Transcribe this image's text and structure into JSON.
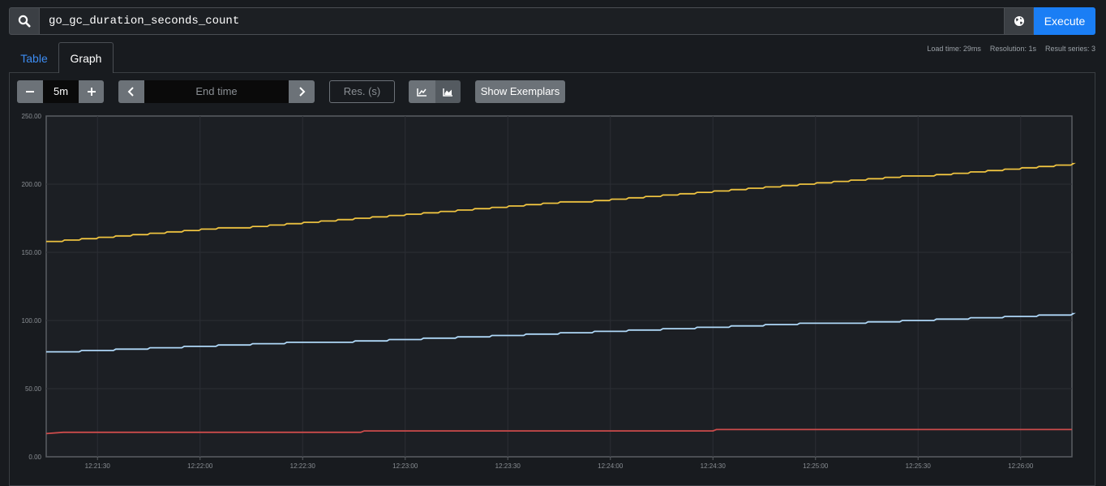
{
  "query": {
    "expression": "go_gc_duration_seconds_count",
    "execute_label": "Execute",
    "search_icon": "search-icon",
    "globe_icon": "globe-icon"
  },
  "tabs": [
    {
      "label": "Table",
      "active": false
    },
    {
      "label": "Graph",
      "active": true
    }
  ],
  "stats": {
    "load_time": "Load time: 29ms",
    "resolution": "Resolution: 1s",
    "result_series": "Result series: 3"
  },
  "controls": {
    "range_value": "5m",
    "end_time_placeholder": "End time",
    "resolution_placeholder": "Res. (s)",
    "show_exemplars_label": "Show Exemplars",
    "icons": {
      "minus": "minus-icon",
      "plus": "plus-icon",
      "prev": "chevron-left-icon",
      "next": "chevron-right-icon",
      "lines": "line-chart-icon",
      "stacked": "area-chart-icon"
    }
  },
  "colors": {
    "accent": "#1a7ef5",
    "series_1": "#edc240",
    "series_2": "#afd8f8",
    "series_3": "#cb4b4b"
  },
  "chart_data": {
    "type": "line",
    "title": "",
    "xlabel": "",
    "ylabel": "",
    "ylim": [
      0,
      250
    ],
    "y_ticks": [
      "0.00",
      "50.00",
      "100.00",
      "150.00",
      "200.00",
      "250.00"
    ],
    "x_ticks": [
      "12:21:30",
      "12:22:00",
      "12:22:30",
      "12:23:00",
      "12:23:30",
      "12:24:00",
      "12:24:30",
      "12:25:00",
      "12:25:30",
      "12:26:00"
    ],
    "x_range": [
      "12:21:15",
      "12:26:15"
    ],
    "grid": true,
    "series": [
      {
        "color": "#edc240",
        "start": 158,
        "end": 215,
        "step_seconds": 5
      },
      {
        "color": "#afd8f8",
        "start": 77,
        "end": 105,
        "step_seconds": 10
      },
      {
        "color": "#cb4b4b",
        "points": [
          [
            "12:21:15",
            17
          ],
          [
            "12:21:20",
            18
          ],
          [
            "12:22:47",
            18
          ],
          [
            "12:22:48",
            19
          ],
          [
            "12:24:30",
            19
          ],
          [
            "12:24:31",
            20
          ],
          [
            "12:26:15",
            20
          ]
        ]
      }
    ]
  }
}
